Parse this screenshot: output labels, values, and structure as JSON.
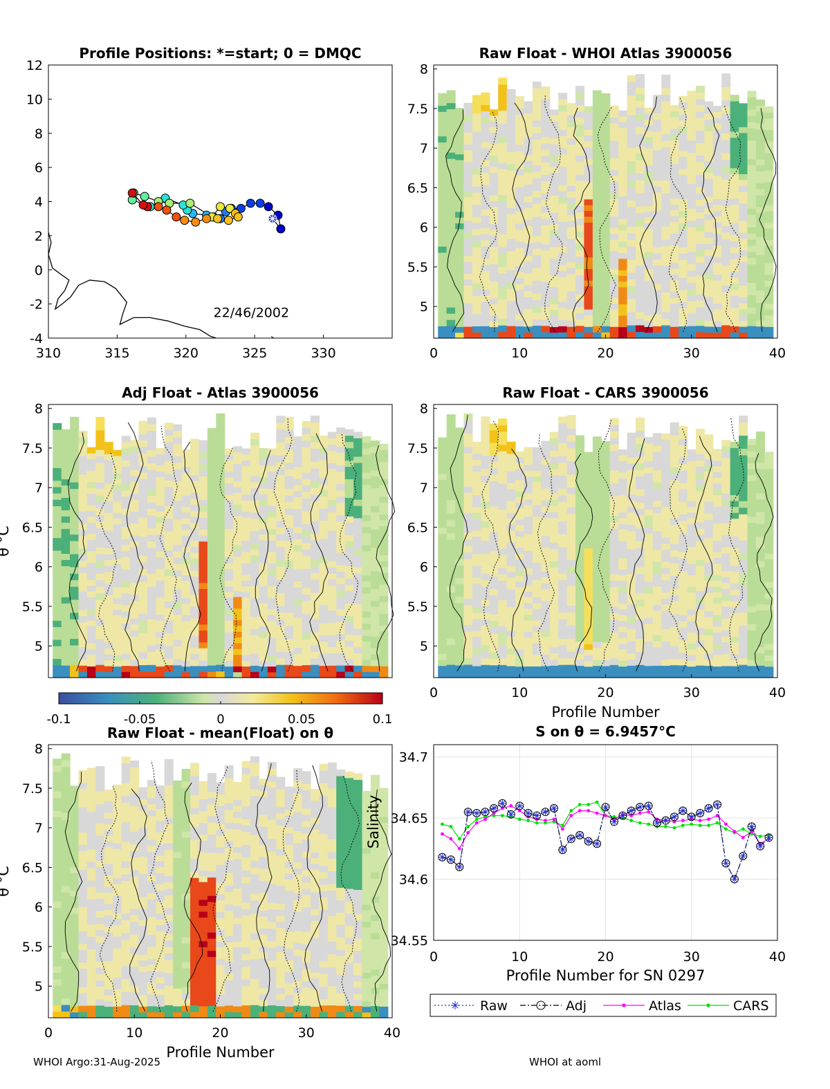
{
  "figure": {
    "footer_left": "WHOI Argo:31-Aug-2025",
    "footer_right": "WHOI at aoml"
  },
  "chart_data": [
    {
      "type": "scatter",
      "id": "positions",
      "title": "Profile Positions: *=start; 0 = DMQC",
      "xlim": [
        310,
        335
      ],
      "ylim": [
        -4,
        12
      ],
      "xticks": [
        "310",
        "315",
        "320",
        "325",
        "330"
      ],
      "yticks": [
        "12",
        "10",
        "8",
        "6",
        "4",
        "2",
        "0",
        "-2",
        "-4"
      ],
      "annotation": "22/46/2002",
      "track": {
        "lon": [
          326.3,
          326.9,
          326.7,
          326.0,
          325.4,
          324.7,
          324.0,
          323.3,
          322.9,
          322.5,
          322.0,
          321.5,
          320.5,
          320.1,
          319.8,
          318.5,
          317.4,
          316.1,
          316.2,
          317.0,
          318.0,
          318.8,
          320.3,
          321.9,
          322.5,
          323.2,
          323.6,
          323.8,
          323.1,
          322.3,
          321.5,
          320.7,
          319.9,
          319.3,
          318.6,
          318.0,
          317.2,
          316.9,
          316.1
        ],
        "lat": [
          3.0,
          2.4,
          3.2,
          3.7,
          3.9,
          3.9,
          3.6,
          3.6,
          3.4,
          3.0,
          3.1,
          3.2,
          3.3,
          3.5,
          3.8,
          4.2,
          3.7,
          4.1,
          4.5,
          4.3,
          4.0,
          3.9,
          3.9,
          3.1,
          3.7,
          3.6,
          3.3,
          3.1,
          2.9,
          3.0,
          3.0,
          2.8,
          2.9,
          3.1,
          3.5,
          3.7,
          3.7,
          3.8,
          4.5
        ]
      },
      "coast_label": "coastline"
    },
    {
      "type": "heatmap",
      "id": "raw_whoi",
      "title": "Raw Float - WHOI Atlas  3900056",
      "xlim": [
        0,
        40
      ],
      "ylim": [
        4.6,
        8.05
      ],
      "xticks": [
        "0",
        "10",
        "20",
        "30",
        "40"
      ],
      "yticks": [
        "8",
        "7.5",
        "7",
        "6.5",
        "6",
        "5.5",
        "5"
      ],
      "xlabel": "",
      "ylabel": ""
    },
    {
      "type": "heatmap",
      "id": "adj_atlas",
      "title": "Adj Float - Atlas  3900056",
      "xlim": [
        0,
        40
      ],
      "ylim": [
        4.6,
        8.05
      ],
      "yticks": [
        "8",
        "7.5",
        "7",
        "6.5",
        "6",
        "5.5",
        "5"
      ],
      "xlabel": "",
      "ylabel": "θ °C"
    },
    {
      "type": "heatmap",
      "id": "raw_cars",
      "title": "Raw Float - CARS  3900056",
      "xlim": [
        0,
        40
      ],
      "ylim": [
        4.6,
        8.05
      ],
      "xticks": [
        "0",
        "10",
        "20",
        "30",
        "40"
      ],
      "yticks": [
        "8",
        "7.5",
        "7",
        "6.5",
        "6",
        "5.5",
        "5"
      ],
      "xlabel": "Profile Number",
      "ylabel": ""
    },
    {
      "type": "colorbar",
      "id": "colorbar",
      "range": [
        -0.1,
        0.1
      ],
      "ticks": [
        "-0.1",
        "-0.05",
        "0",
        "0.05",
        "0.1"
      ]
    },
    {
      "type": "heatmap",
      "id": "raw_mean",
      "title": "Raw Float - mean(Float) on θ",
      "xlim": [
        0,
        40
      ],
      "ylim": [
        4.6,
        8.05
      ],
      "xticks": [
        "0",
        "10",
        "20",
        "30",
        "40"
      ],
      "yticks": [
        "8",
        "7.5",
        "7",
        "6.5",
        "6",
        "5.5",
        "5"
      ],
      "xlabel": "Profile Number",
      "ylabel": "θ °C"
    },
    {
      "type": "line",
      "id": "salinity",
      "title": "S on θ = 6.9457°C",
      "xlim": [
        0,
        40
      ],
      "ylim": [
        34.55,
        34.71
      ],
      "xticks": [
        "0",
        "10",
        "20",
        "30",
        "40"
      ],
      "yticks": [
        "34.7",
        "34.65",
        "34.6",
        "34.55"
      ],
      "xlabel": "Profile Number for SN 0297",
      "ylabel": "Salinity",
      "x": [
        1,
        2,
        3,
        4,
        5,
        6,
        7,
        8,
        9,
        10,
        11,
        12,
        13,
        14,
        15,
        16,
        17,
        18,
        19,
        20,
        21,
        22,
        23,
        24,
        25,
        26,
        27,
        28,
        29,
        30,
        31,
        32,
        33,
        34,
        35,
        36,
        37,
        38,
        39
      ],
      "series": [
        {
          "name": "Raw",
          "color": "#2230d0",
          "style": "dotted",
          "marker": "star",
          "values": [
            34.618,
            34.616,
            34.61,
            34.655,
            34.654,
            34.655,
            34.658,
            34.662,
            34.653,
            34.66,
            34.654,
            34.652,
            34.655,
            34.658,
            34.624,
            34.633,
            34.636,
            34.631,
            34.629,
            34.659,
            34.647,
            34.652,
            34.656,
            34.659,
            34.66,
            34.646,
            34.648,
            34.651,
            34.656,
            34.651,
            34.654,
            34.658,
            34.661,
            34.613,
            34.6,
            34.619,
            34.643,
            34.627,
            34.634
          ]
        },
        {
          "name": "Adj",
          "color": "#000000",
          "style": "dashdot",
          "marker": "circle",
          "values": [
            34.618,
            34.616,
            34.61,
            34.655,
            34.654,
            34.655,
            34.658,
            34.662,
            34.653,
            34.66,
            34.654,
            34.652,
            34.655,
            34.658,
            34.624,
            34.633,
            34.636,
            34.631,
            34.629,
            34.659,
            34.647,
            34.652,
            34.656,
            34.659,
            34.66,
            34.646,
            34.648,
            34.651,
            34.656,
            34.651,
            34.654,
            34.658,
            34.661,
            34.613,
            34.6,
            34.619,
            34.643,
            34.627,
            34.634
          ]
        },
        {
          "name": "Atlas",
          "color": "#ff00ff",
          "style": "solid",
          "marker": "dot",
          "values": [
            34.637,
            34.633,
            34.625,
            34.638,
            34.646,
            34.649,
            34.654,
            34.658,
            34.66,
            34.656,
            34.651,
            34.649,
            34.648,
            34.649,
            34.641,
            34.652,
            34.656,
            34.656,
            34.654,
            34.652,
            34.649,
            34.653,
            34.652,
            34.654,
            34.655,
            34.649,
            34.648,
            34.647,
            34.648,
            34.649,
            34.648,
            34.649,
            34.652,
            34.645,
            34.639,
            34.634,
            34.639,
            34.629,
            34.633
          ]
        },
        {
          "name": "CARS",
          "color": "#00e000",
          "style": "solid",
          "marker": "dot",
          "values": [
            34.645,
            34.643,
            34.633,
            34.643,
            34.649,
            34.651,
            34.652,
            34.652,
            34.651,
            34.649,
            34.648,
            34.646,
            34.646,
            34.647,
            34.644,
            34.656,
            34.661,
            34.661,
            34.663,
            34.652,
            34.651,
            34.65,
            34.648,
            34.646,
            34.645,
            34.643,
            34.643,
            34.642,
            34.644,
            34.645,
            34.644,
            34.644,
            34.646,
            34.641,
            34.638,
            34.641,
            34.637,
            34.635,
            34.636
          ]
        }
      ]
    }
  ]
}
